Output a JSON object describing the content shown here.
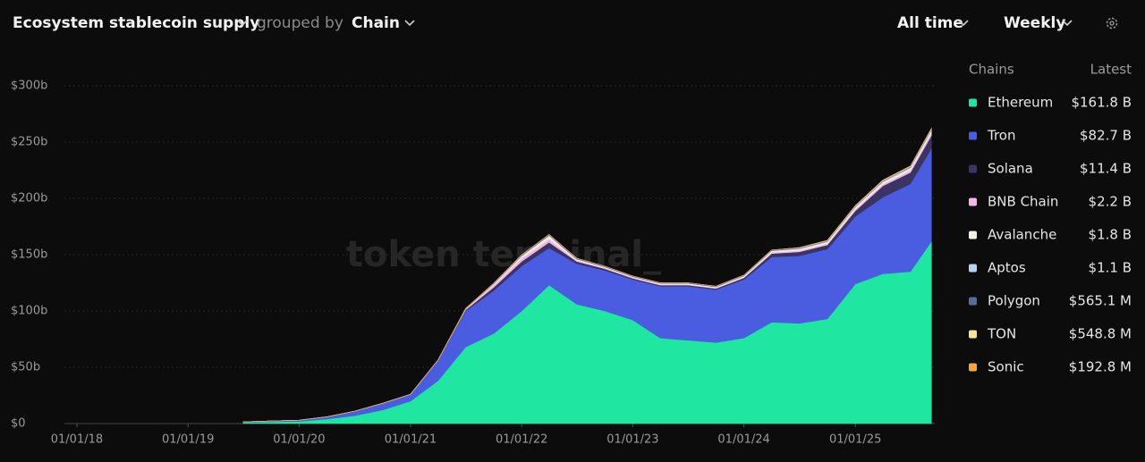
{
  "chart_data": {
    "type": "stacked_area",
    "title": "Ecosystem stablecoin supply",
    "group_label": "grouped by",
    "group_value": "Chain",
    "range_option": "All time",
    "interval_option": "Weekly",
    "watermark": "token terminal_",
    "legend_title": "Chains",
    "legend_value_title": "Latest",
    "x": [
      "2019-07-01",
      "2020-01-01",
      "2020-04-01",
      "2020-07-01",
      "2020-10-01",
      "2021-01-01",
      "2021-04-01",
      "2021-07-01",
      "2021-10-01",
      "2022-01-01",
      "2022-04-01",
      "2022-07-01",
      "2022-10-01",
      "2023-01-01",
      "2023-04-01",
      "2023-07-01",
      "2023-10-01",
      "2024-01-01",
      "2024-04-01",
      "2024-07-01",
      "2024-10-01",
      "2025-01-01",
      "2025-04-01",
      "2025-07-01",
      "2025-09-08"
    ],
    "series": [
      {
        "name": "Ethereum",
        "color": "#1fe6a0",
        "values": [
          1,
          2,
          4,
          7,
          12,
          20,
          38,
          68,
          80,
          100,
          123,
          106,
          100,
          92,
          76,
          74,
          72,
          76,
          90,
          89,
          93,
          124,
          133,
          135,
          161.8
        ]
      },
      {
        "name": "Tron",
        "color": "#4a5de0",
        "values": [
          0.5,
          1,
          2,
          4,
          6,
          6,
          18,
          32,
          38,
          40,
          33,
          36,
          36,
          36,
          46,
          48,
          47,
          52,
          58,
          60,
          62,
          60,
          68,
          78,
          82.7
        ]
      },
      {
        "name": "Solana",
        "color": "#3a3462",
        "values": [
          0,
          0,
          0,
          0,
          0,
          0,
          0.2,
          1,
          3,
          4,
          5,
          2,
          1.5,
          1,
          1,
          1,
          1,
          1.5,
          3,
          3.5,
          3.6,
          5,
          10,
          10,
          11.4
        ]
      },
      {
        "name": "BNB Chain",
        "color": "#f4b6e6",
        "values": [
          0,
          0,
          0,
          0,
          0,
          0,
          0,
          0.5,
          2,
          3,
          3,
          1,
          0.8,
          0.7,
          0.6,
          0.6,
          0.5,
          0.5,
          1,
          1.2,
          1.3,
          1.5,
          1.7,
          2,
          2.2
        ]
      },
      {
        "name": "Avalanche",
        "color": "#f3f1e6",
        "values": [
          0,
          0,
          0,
          0,
          0,
          0,
          0,
          0.3,
          1,
          2,
          3,
          1,
          0.8,
          0.7,
          0.8,
          0.8,
          0.8,
          1,
          1.2,
          1.3,
          1.4,
          1.5,
          1.5,
          1.6,
          1.8
        ]
      },
      {
        "name": "Aptos",
        "color": "#b8d3f5",
        "values": [
          0,
          0,
          0,
          0,
          0,
          0,
          0,
          0,
          0,
          0,
          0,
          0,
          0,
          0,
          0.05,
          0.1,
          0.1,
          0.2,
          0.3,
          0.4,
          0.4,
          0.5,
          0.8,
          1,
          1.1
        ]
      },
      {
        "name": "Polygon",
        "color": "#5b6a9c",
        "values": [
          0,
          0,
          0,
          0,
          0,
          0.1,
          0.2,
          0.4,
          0.6,
          0.8,
          0.9,
          0.8,
          0.7,
          0.6,
          0.6,
          0.6,
          0.6,
          0.6,
          0.6,
          0.6,
          0.6,
          0.6,
          0.6,
          0.6,
          0.5651
        ]
      },
      {
        "name": "TON",
        "color": "#f6e39a",
        "values": [
          0,
          0,
          0,
          0,
          0,
          0,
          0,
          0,
          0,
          0,
          0,
          0,
          0,
          0,
          0,
          0,
          0,
          0,
          0,
          0.3,
          0.4,
          0.5,
          0.5,
          0.5,
          0.5488
        ]
      },
      {
        "name": "Sonic",
        "color": "#f2a93b",
        "values": [
          0,
          0,
          0,
          0,
          0,
          0,
          0,
          0,
          0,
          0,
          0,
          0,
          0,
          0,
          0,
          0,
          0,
          0,
          0,
          0,
          0,
          0,
          0.05,
          0.1,
          0.1928
        ]
      }
    ],
    "legend_latest": {
      "values": [
        161.8,
        82.7,
        11.4,
        2.2,
        1.8,
        1.1,
        0.5651,
        0.5488,
        0.1928
      ],
      "value_labels": [
        "$161.8 B",
        "$82.7 B",
        "$11.4 B",
        "$2.2 B",
        "$1.8 B",
        "$1.1 B",
        "$565.1 M",
        "$548.8 M",
        "$192.8 M"
      ]
    },
    "xlim": [
      "2017-11-21",
      "2025-09-19"
    ],
    "xticks": [
      {
        "value": "2018-01-01",
        "label": "01/01/18"
      },
      {
        "value": "2019-01-01",
        "label": "01/01/19"
      },
      {
        "value": "2020-01-01",
        "label": "01/01/20"
      },
      {
        "value": "2021-01-01",
        "label": "01/01/21"
      },
      {
        "value": "2022-01-01",
        "label": "01/01/22"
      },
      {
        "value": "2023-01-01",
        "label": "01/01/23"
      },
      {
        "value": "2024-01-01",
        "label": "01/01/24"
      },
      {
        "value": "2025-01-01",
        "label": "01/01/25"
      }
    ],
    "ylim": [
      0,
      300
    ],
    "yticks": [
      {
        "value": 0,
        "label": "$0"
      },
      {
        "value": 50,
        "label": "$50b"
      },
      {
        "value": 100,
        "label": "$100b"
      },
      {
        "value": 150,
        "label": "$150b"
      },
      {
        "value": 200,
        "label": "$200b"
      },
      {
        "value": 250,
        "label": "$250b"
      },
      {
        "value": 300,
        "label": "$300b"
      }
    ],
    "grid": true
  }
}
